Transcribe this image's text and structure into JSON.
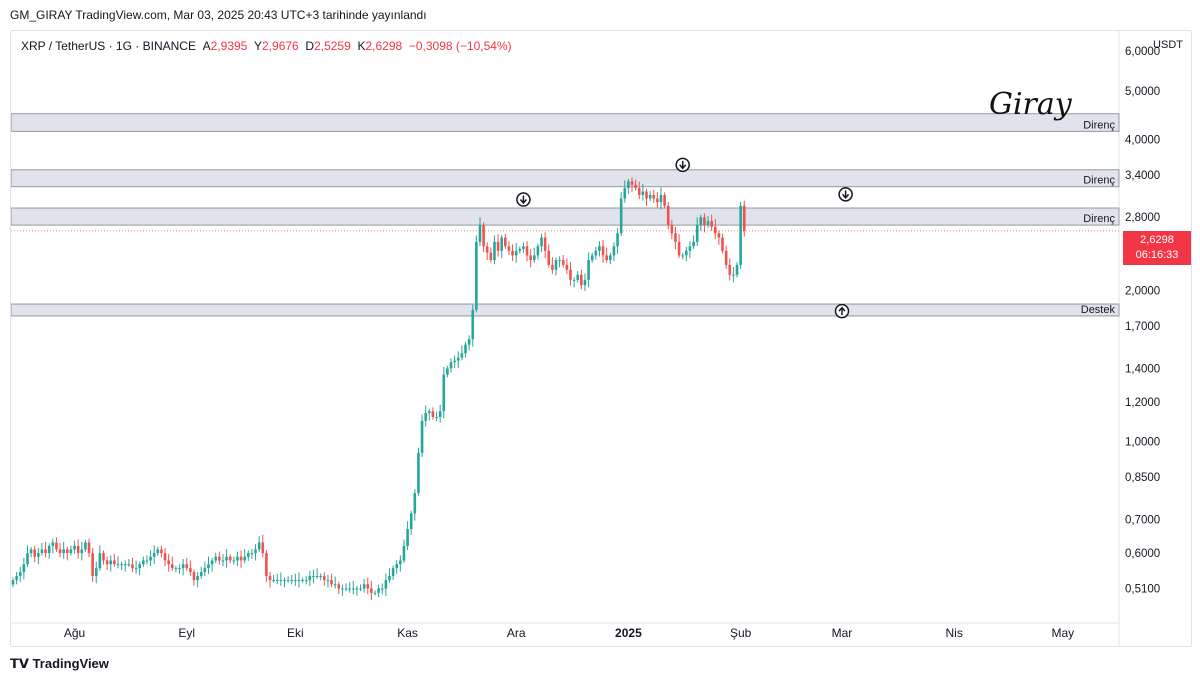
{
  "header": {
    "published": "GM_GIRAY TradingView.com, Mar 03, 2025 20:43 UTC+3 tarihinde yayınlandı"
  },
  "symbol": {
    "title": "XRP / TetherUS · 1G · BINANCE",
    "o_label": "A",
    "o": "2,9395",
    "h_label": "Y",
    "h": "2,9676",
    "l_label": "D",
    "l": "2,5259",
    "c_label": "K",
    "c": "2,6298",
    "change": "−0,3098 (−10,54%)"
  },
  "currency": "USDT",
  "signature": "Giray",
  "last_price": {
    "value": "2,6298",
    "countdown": "06:16:33"
  },
  "footer": {
    "brand": "TradingView"
  },
  "colors": {
    "up": "#26a69a",
    "down": "#ef5350",
    "zone": "#d1d4dc",
    "price": "#f23645"
  },
  "chart_data": {
    "type": "candlestick",
    "scale": "log",
    "ylim": [
      0.46,
      6.0
    ],
    "y_ticks": [
      {
        "v": 6.0,
        "l": "6,0000"
      },
      {
        "v": 5.0,
        "l": "5,0000"
      },
      {
        "v": 4.0,
        "l": "4,0000"
      },
      {
        "v": 3.4,
        "l": "3,4000"
      },
      {
        "v": 2.8,
        "l": "2,8000"
      },
      {
        "v": 2.0,
        "l": "2,0000"
      },
      {
        "v": 1.7,
        "l": "1,7000"
      },
      {
        "v": 1.4,
        "l": "1,4000"
      },
      {
        "v": 1.2,
        "l": "1,2000"
      },
      {
        "v": 1.0,
        "l": "1,0000"
      },
      {
        "v": 0.85,
        "l": "0,8500"
      },
      {
        "v": 0.7,
        "l": "0,7000"
      },
      {
        "v": 0.6,
        "l": "0,6000"
      },
      {
        "v": 0.51,
        "l": "0,5100"
      }
    ],
    "x_ticks": [
      "Ağu",
      "Eyl",
      "Eki",
      "Kas",
      "Ara",
      "2025",
      "Şub",
      "Mar",
      "Nis",
      "May"
    ],
    "zones": [
      {
        "label": "Direnç",
        "low": 4.15,
        "high": 4.5
      },
      {
        "label": "Direnç",
        "low": 3.22,
        "high": 3.48
      },
      {
        "label": "Direnç",
        "low": 2.7,
        "high": 2.92
      },
      {
        "label": "Destek",
        "low": 1.78,
        "high": 1.88
      }
    ],
    "markers": [
      {
        "type": "down",
        "date": "2024-12-03",
        "price": 2.9
      },
      {
        "type": "down",
        "date": "2025-01-16",
        "price": 3.4
      },
      {
        "type": "down",
        "date": "2025-03-02",
        "price": 2.97
      },
      {
        "type": "up",
        "date": "2025-03-01",
        "price": 1.82
      }
    ],
    "series": [
      {
        "s": "2024-07-15",
        "v": [
          0.53,
          0.54,
          0.55,
          0.57,
          0.6,
          0.61,
          0.59,
          0.6,
          0.61,
          0.6,
          0.62,
          0.63,
          0.61,
          0.6,
          0.61,
          0.6,
          0.61,
          0.62,
          0.6,
          0.61,
          0.63,
          0.6,
          0.54,
          0.56,
          0.6,
          0.58,
          0.57,
          0.58,
          0.57,
          0.57,
          0.57,
          0.57,
          0.57,
          0.56,
          0.56,
          0.57,
          0.58,
          0.58,
          0.59,
          0.6,
          0.61,
          0.6,
          0.58,
          0.57,
          0.56,
          0.56,
          0.56,
          0.57,
          0.56,
          0.55,
          0.53,
          0.54,
          0.55,
          0.56,
          0.57,
          0.58,
          0.59,
          0.58,
          0.58,
          0.59,
          0.58,
          0.58,
          0.59,
          0.58,
          0.59,
          0.6,
          0.6,
          0.61,
          0.63,
          0.6,
          0.54,
          0.53,
          0.53,
          0.53,
          0.53,
          0.53,
          0.53,
          0.53,
          0.53,
          0.53,
          0.53,
          0.53,
          0.54,
          0.54,
          0.54,
          0.54,
          0.53,
          0.53,
          0.52,
          0.52,
          0.51,
          0.51,
          0.51,
          0.51,
          0.51,
          0.51,
          0.51,
          0.52,
          0.51,
          0.5,
          0.5,
          0.51,
          0.51,
          0.53,
          0.54,
          0.56,
          0.57,
          0.58,
          0.62,
          0.67,
          0.72,
          0.79,
          0.95,
          1.1,
          1.14,
          1.15,
          1.12,
          1.12,
          1.15,
          1.36,
          1.4,
          1.44,
          1.45,
          1.47,
          1.5,
          1.56,
          1.6,
          1.83,
          2.5,
          2.7,
          2.45,
          2.38,
          2.3,
          2.5,
          2.4,
          2.55,
          2.45,
          2.4,
          2.35,
          2.4,
          2.42,
          2.45,
          2.35,
          2.3,
          2.35,
          2.45,
          2.55,
          2.4,
          2.25,
          2.2,
          2.3,
          2.3,
          2.25,
          2.2,
          2.1,
          2.1,
          2.15,
          2.05,
          2.1,
          2.3,
          2.35,
          2.4,
          2.45,
          2.35,
          2.3,
          2.35,
          2.45,
          2.6,
          3.05,
          3.2,
          3.3,
          3.25,
          3.2,
          3.1,
          3.15,
          3.05,
          3.1,
          3.05,
          3.0,
          3.1,
          2.95,
          2.7,
          2.6,
          2.5,
          2.35,
          2.35,
          2.4,
          2.45,
          2.5,
          2.7,
          2.8,
          2.7,
          2.75,
          2.68,
          2.6,
          2.55,
          2.4,
          2.25,
          2.15,
          2.15,
          2.25,
          2.95,
          2.63
        ]
      }
    ]
  }
}
